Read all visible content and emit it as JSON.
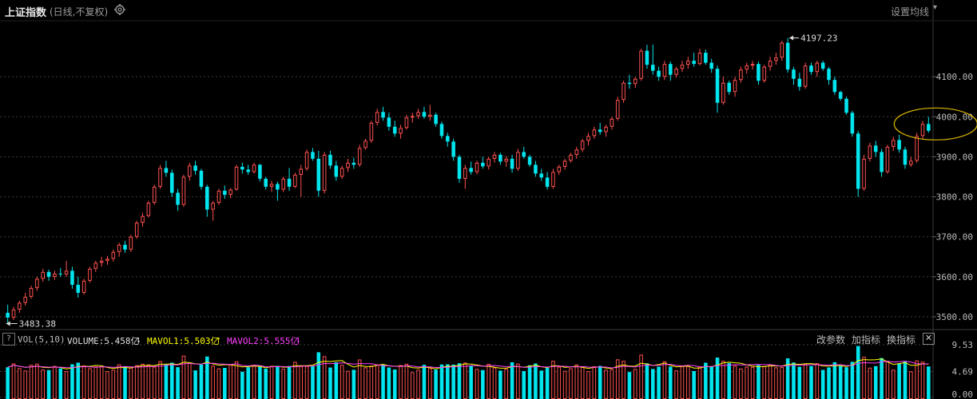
{
  "header": {
    "title": "上证指数",
    "subtitle": "(日线,不复权)",
    "ma_setting_label": "设置均线",
    "ma_setting_icon": "chevron-down-icon",
    "gear_icon": "gear-icon"
  },
  "chart_data": [
    {
      "type": "candlestick",
      "y_ticks": [
        "4100.00",
        "4000.00",
        "3900.00",
        "3800.00",
        "3700.00",
        "3600.00",
        "3500.00"
      ],
      "ylim": [
        3470,
        4240
      ],
      "max_annotation": "4197.23",
      "min_annotation": "3483.38",
      "up_color": "#ff5050",
      "down_color": "#00e5ee",
      "grid": true,
      "highlight": "last-candles-circled",
      "ohlc": [
        [
          3510,
          3530,
          3483,
          3498
        ],
        [
          3498,
          3525,
          3492,
          3518
        ],
        [
          3518,
          3540,
          3510,
          3535
        ],
        [
          3535,
          3560,
          3528,
          3550
        ],
        [
          3550,
          3578,
          3545,
          3572
        ],
        [
          3572,
          3600,
          3565,
          3595
        ],
        [
          3595,
          3620,
          3588,
          3612
        ],
        [
          3612,
          3618,
          3590,
          3600
        ],
        [
          3600,
          3615,
          3592,
          3608
        ],
        [
          3608,
          3622,
          3600,
          3606
        ],
        [
          3606,
          3640,
          3600,
          3615
        ],
        [
          3615,
          3625,
          3570,
          3580
        ],
        [
          3580,
          3600,
          3548,
          3560
        ],
        [
          3560,
          3595,
          3555,
          3590
        ],
        [
          3590,
          3625,
          3585,
          3620
        ],
        [
          3620,
          3640,
          3612,
          3635
        ],
        [
          3635,
          3650,
          3625,
          3640
        ],
        [
          3640,
          3652,
          3630,
          3645
        ],
        [
          3645,
          3668,
          3638,
          3662
        ],
        [
          3662,
          3685,
          3650,
          3680
        ],
        [
          3680,
          3690,
          3660,
          3668
        ],
        [
          3668,
          3705,
          3662,
          3700
        ],
        [
          3700,
          3740,
          3695,
          3735
        ],
        [
          3735,
          3760,
          3725,
          3752
        ],
        [
          3752,
          3790,
          3748,
          3785
        ],
        [
          3785,
          3830,
          3780,
          3825
        ],
        [
          3825,
          3880,
          3820,
          3872
        ],
        [
          3872,
          3890,
          3850,
          3860
        ],
        [
          3860,
          3868,
          3800,
          3810
        ],
        [
          3810,
          3820,
          3765,
          3780
        ],
        [
          3780,
          3855,
          3775,
          3850
        ],
        [
          3850,
          3885,
          3840,
          3878
        ],
        [
          3878,
          3890,
          3855,
          3865
        ],
        [
          3865,
          3870,
          3818,
          3825
        ],
        [
          3825,
          3830,
          3750,
          3768
        ],
        [
          3768,
          3790,
          3740,
          3785
        ],
        [
          3785,
          3820,
          3780,
          3815
        ],
        [
          3815,
          3828,
          3795,
          3805
        ],
        [
          3805,
          3822,
          3796,
          3818
        ],
        [
          3818,
          3880,
          3815,
          3875
        ],
        [
          3875,
          3885,
          3858,
          3868
        ],
        [
          3868,
          3880,
          3855,
          3862
        ],
        [
          3862,
          3885,
          3858,
          3880
        ],
        [
          3880,
          3882,
          3838,
          3845
        ],
        [
          3845,
          3850,
          3818,
          3825
        ],
        [
          3825,
          3840,
          3812,
          3832
        ],
        [
          3832,
          3838,
          3790,
          3818
        ],
        [
          3818,
          3850,
          3812,
          3845
        ],
        [
          3845,
          3872,
          3815,
          3825
        ],
        [
          3825,
          3860,
          3822,
          3855
        ],
        [
          3855,
          3880,
          3800,
          3870
        ],
        [
          3870,
          3918,
          3865,
          3912
        ],
        [
          3912,
          3922,
          3890,
          3895
        ],
        [
          3895,
          3915,
          3800,
          3815
        ],
        [
          3815,
          3912,
          3808,
          3905
        ],
        [
          3905,
          3915,
          3870,
          3878
        ],
        [
          3878,
          3890,
          3840,
          3850
        ],
        [
          3850,
          3878,
          3845,
          3872
        ],
        [
          3872,
          3895,
          3862,
          3885
        ],
        [
          3885,
          3898,
          3870,
          3880
        ],
        [
          3880,
          3930,
          3875,
          3922
        ],
        [
          3922,
          3945,
          3918,
          3940
        ],
        [
          3940,
          3990,
          3935,
          3985
        ],
        [
          3985,
          4020,
          3978,
          4012
        ],
        [
          4012,
          4025,
          3990,
          3998
        ],
        [
          3998,
          4010,
          3965,
          3975
        ],
        [
          3975,
          3990,
          3950,
          3958
        ],
        [
          3958,
          3980,
          3945,
          3972
        ],
        [
          3972,
          4005,
          3968,
          3998
        ],
        [
          3998,
          4010,
          3985,
          4002
        ],
        [
          4002,
          4020,
          3995,
          4012
        ],
        [
          4012,
          4025,
          3995,
          4000
        ],
        [
          4000,
          4030,
          3990,
          4005
        ],
        [
          4005,
          4010,
          3975,
          3982
        ],
        [
          3982,
          3988,
          3945,
          3952
        ],
        [
          3952,
          3960,
          3925,
          3938
        ],
        [
          3938,
          3945,
          3890,
          3900
        ],
        [
          3900,
          3905,
          3835,
          3845
        ],
        [
          3845,
          3880,
          3820,
          3872
        ],
        [
          3872,
          3888,
          3855,
          3862
        ],
        [
          3862,
          3890,
          3856,
          3885
        ],
        [
          3885,
          3900,
          3870,
          3876
        ],
        [
          3876,
          3900,
          3868,
          3895
        ],
        [
          3895,
          3912,
          3885,
          3905
        ],
        [
          3905,
          3910,
          3880,
          3888
        ],
        [
          3888,
          3902,
          3875,
          3895
        ],
        [
          3895,
          3905,
          3860,
          3870
        ],
        [
          3870,
          3920,
          3865,
          3912
        ],
        [
          3912,
          3925,
          3895,
          3900
        ],
        [
          3900,
          3905,
          3875,
          3880
        ],
        [
          3880,
          3890,
          3850,
          3858
        ],
        [
          3858,
          3870,
          3840,
          3848
        ],
        [
          3848,
          3862,
          3818,
          3825
        ],
        [
          3825,
          3870,
          3820,
          3862
        ],
        [
          3862,
          3880,
          3855,
          3875
        ],
        [
          3875,
          3895,
          3868,
          3890
        ],
        [
          3890,
          3910,
          3885,
          3905
        ],
        [
          3905,
          3925,
          3895,
          3918
        ],
        [
          3918,
          3945,
          3912,
          3940
        ],
        [
          3940,
          3960,
          3928,
          3952
        ],
        [
          3952,
          3975,
          3945,
          3968
        ],
        [
          3968,
          3985,
          3955,
          3962
        ],
        [
          3962,
          3980,
          3950,
          3975
        ],
        [
          3975,
          4000,
          3968,
          3995
        ],
        [
          3995,
          4050,
          3990,
          4042
        ],
        [
          4042,
          4090,
          4035,
          4085
        ],
        [
          4085,
          4105,
          4070,
          4082
        ],
        [
          4082,
          4100,
          4072,
          4095
        ],
        [
          4095,
          4170,
          4090,
          4165
        ],
        [
          4165,
          4180,
          4120,
          4130
        ],
        [
          4130,
          4180,
          4105,
          4115
        ],
        [
          4115,
          4125,
          4090,
          4100
        ],
        [
          4100,
          4140,
          4092,
          4132
        ],
        [
          4132,
          4138,
          4090,
          4105
        ],
        [
          4105,
          4125,
          4098,
          4120
        ],
        [
          4120,
          4140,
          4112,
          4130
        ],
        [
          4130,
          4150,
          4120,
          4140
        ],
        [
          4140,
          4160,
          4125,
          4132
        ],
        [
          4132,
          4170,
          4128,
          4160
        ],
        [
          4160,
          4168,
          4130,
          4135
        ],
        [
          4135,
          4145,
          4110,
          4120
        ],
        [
          4120,
          4128,
          4010,
          4035
        ],
        [
          4035,
          4100,
          4030,
          4085
        ],
        [
          4085,
          4090,
          4055,
          4062
        ],
        [
          4062,
          4100,
          4050,
          4092
        ],
        [
          4092,
          4125,
          4085,
          4118
        ],
        [
          4118,
          4135,
          4108,
          4128
        ],
        [
          4128,
          4140,
          4118,
          4132
        ],
        [
          4132,
          4138,
          4080,
          4090
        ],
        [
          4090,
          4130,
          4085,
          4125
        ],
        [
          4125,
          4150,
          4115,
          4140
        ],
        [
          4140,
          4160,
          4130,
          4148
        ],
        [
          4148,
          4190,
          4140,
          4185
        ],
        [
          4185,
          4197,
          4110,
          4118
        ],
        [
          4118,
          4125,
          4080,
          4095
        ],
        [
          4095,
          4110,
          4065,
          4075
        ],
        [
          4075,
          4135,
          4070,
          4128
        ],
        [
          4128,
          4135,
          4105,
          4112
        ],
        [
          4112,
          4140,
          4100,
          4135
        ],
        [
          4135,
          4140,
          4115,
          4120
        ],
        [
          4120,
          4125,
          4080,
          4092
        ],
        [
          4092,
          4100,
          4055,
          4062
        ],
        [
          4062,
          4065,
          4040,
          4045
        ],
        [
          4045,
          4050,
          4005,
          4010
        ],
        [
          4010,
          4015,
          3950,
          3958
        ],
        [
          3958,
          3965,
          3800,
          3820
        ],
        [
          3820,
          3905,
          3815,
          3895
        ],
        [
          3895,
          3935,
          3888,
          3928
        ],
        [
          3928,
          3940,
          3900,
          3912
        ],
        [
          3912,
          3920,
          3850,
          3862
        ],
        [
          3862,
          3930,
          3858,
          3925
        ],
        [
          3925,
          3950,
          3915,
          3942
        ],
        [
          3942,
          3955,
          3910,
          3918
        ],
        [
          3918,
          3925,
          3870,
          3880
        ],
        [
          3880,
          3900,
          3875,
          3890
        ],
        [
          3890,
          3960,
          3885,
          3952
        ],
        [
          3952,
          3990,
          3945,
          3982
        ],
        [
          3982,
          4000,
          3960,
          3965
        ]
      ]
    },
    {
      "type": "volume",
      "indicator": "VOL(5,10)",
      "volume_label": "VOLUME:5.458亿",
      "volume_arrow": "↓",
      "mavol1_label": "MAVOL1:5.503亿",
      "mavol1_arrow": "↑",
      "mavol2_label": "MAVOL2:5.555亿",
      "mavol2_arrow": "↓",
      "y_ticks": [
        "9.53",
        "4.69",
        "0.00"
      ],
      "ylim": [
        0,
        9.53
      ],
      "colors": {
        "volume_label": "#e0e0e0",
        "mavol1": "#ffff00",
        "mavol2": "#ff40ff"
      }
    }
  ],
  "volume_toolbar": {
    "help_label": "?",
    "change_params": "改参数",
    "add_indicator": "加指标",
    "switch_indicator": "换指标",
    "close_label": "✕"
  }
}
